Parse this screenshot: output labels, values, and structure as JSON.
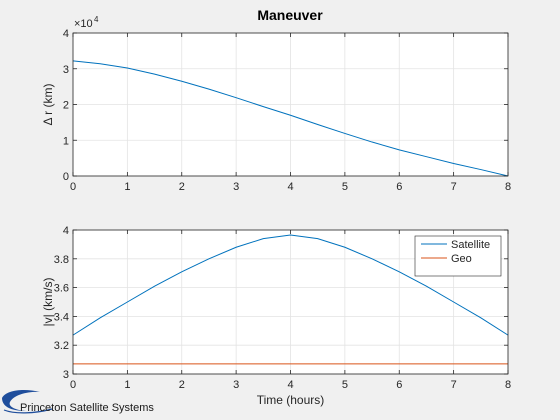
{
  "chart_data": [
    {
      "type": "line",
      "title": "Maneuver",
      "xlabel": "",
      "ylabel": "Δ r (km)",
      "xlim": [
        0,
        8
      ],
      "ylim": [
        0,
        4
      ],
      "y_exponent_label": "×10",
      "y_exponent_value": "4",
      "xticks": [
        "0",
        "1",
        "2",
        "3",
        "4",
        "5",
        "6",
        "7",
        "8"
      ],
      "yticks": [
        "0",
        "1",
        "2",
        "3",
        "4"
      ],
      "grid": true,
      "series": [
        {
          "name": "",
          "color": "#0072BD",
          "x": [
            0,
            0.5,
            1,
            1.5,
            2,
            2.5,
            3,
            3.5,
            4,
            4.5,
            5,
            5.5,
            6,
            6.5,
            7,
            7.5,
            8
          ],
          "y": [
            3.22,
            3.14,
            3.02,
            2.85,
            2.65,
            2.43,
            2.19,
            1.94,
            1.7,
            1.44,
            1.19,
            0.95,
            0.73,
            0.54,
            0.35,
            0.18,
            0.0
          ]
        }
      ]
    },
    {
      "type": "line",
      "xlabel": "Time (hours)",
      "ylabel": "|v| (km/s)",
      "xlim": [
        0,
        8
      ],
      "ylim": [
        3,
        4
      ],
      "xticks": [
        "0",
        "1",
        "2",
        "3",
        "4",
        "5",
        "6",
        "7",
        "8"
      ],
      "yticks": [
        "3",
        "3.2",
        "3.4",
        "3.6",
        "3.8",
        "4"
      ],
      "grid": true,
      "legend_position": "top-right",
      "series": [
        {
          "name": "Satellite",
          "color": "#0072BD",
          "x": [
            0,
            0.5,
            1,
            1.5,
            2,
            2.5,
            3,
            3.5,
            4,
            4.5,
            5,
            5.5,
            6,
            6.5,
            7,
            7.5,
            8
          ],
          "y": [
            3.27,
            3.39,
            3.5,
            3.61,
            3.71,
            3.8,
            3.88,
            3.94,
            3.965,
            3.94,
            3.88,
            3.8,
            3.71,
            3.61,
            3.5,
            3.39,
            3.27
          ]
        },
        {
          "name": "Geo",
          "color": "#D95319",
          "x": [
            0,
            8
          ],
          "y": [
            3.07,
            3.07
          ]
        }
      ]
    }
  ],
  "logo": {
    "text": "Princeton Satellite Systems",
    "color": "#1f4e9c"
  }
}
